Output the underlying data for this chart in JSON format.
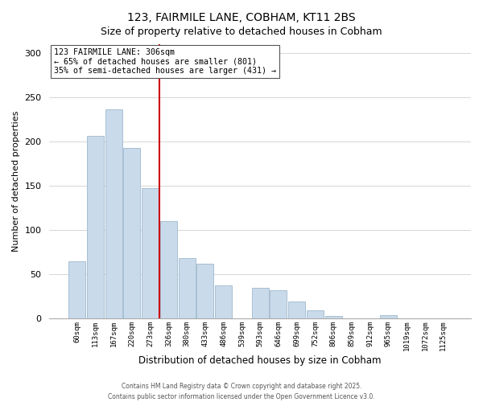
{
  "title": "123, FAIRMILE LANE, COBHAM, KT11 2BS",
  "subtitle": "Size of property relative to detached houses in Cobham",
  "xlabel": "Distribution of detached houses by size in Cobham",
  "ylabel": "Number of detached properties",
  "bar_labels": [
    "60sqm",
    "113sqm",
    "167sqm",
    "220sqm",
    "273sqm",
    "326sqm",
    "380sqm",
    "433sqm",
    "486sqm",
    "539sqm",
    "593sqm",
    "646sqm",
    "699sqm",
    "752sqm",
    "806sqm",
    "859sqm",
    "912sqm",
    "965sqm",
    "1019sqm",
    "1072sqm",
    "1125sqm"
  ],
  "bar_values": [
    65,
    206,
    236,
    193,
    147,
    110,
    68,
    62,
    37,
    0,
    35,
    32,
    19,
    9,
    3,
    0,
    0,
    4,
    0,
    0,
    0
  ],
  "bar_color": "#c9daea",
  "bar_edge_color": "#a8c0d4",
  "vline_index": 5,
  "vline_color": "#cc0000",
  "ylim": [
    0,
    310
  ],
  "yticks": [
    0,
    50,
    100,
    150,
    200,
    250,
    300
  ],
  "annotation_line1": "123 FAIRMILE LANE: 306sqm",
  "annotation_line2": "← 65% of detached houses are smaller (801)",
  "annotation_line3": "35% of semi-detached houses are larger (431) →",
  "annotation_box_facecolor": "#ffffff",
  "annotation_box_edgecolor": "#555555",
  "footer_line1": "Contains HM Land Registry data © Crown copyright and database right 2025.",
  "footer_line2": "Contains public sector information licensed under the Open Government Licence v3.0.",
  "background_color": "#ffffff",
  "grid_color": "#d0d0d0",
  "title_fontsize": 10,
  "subtitle_fontsize": 9
}
